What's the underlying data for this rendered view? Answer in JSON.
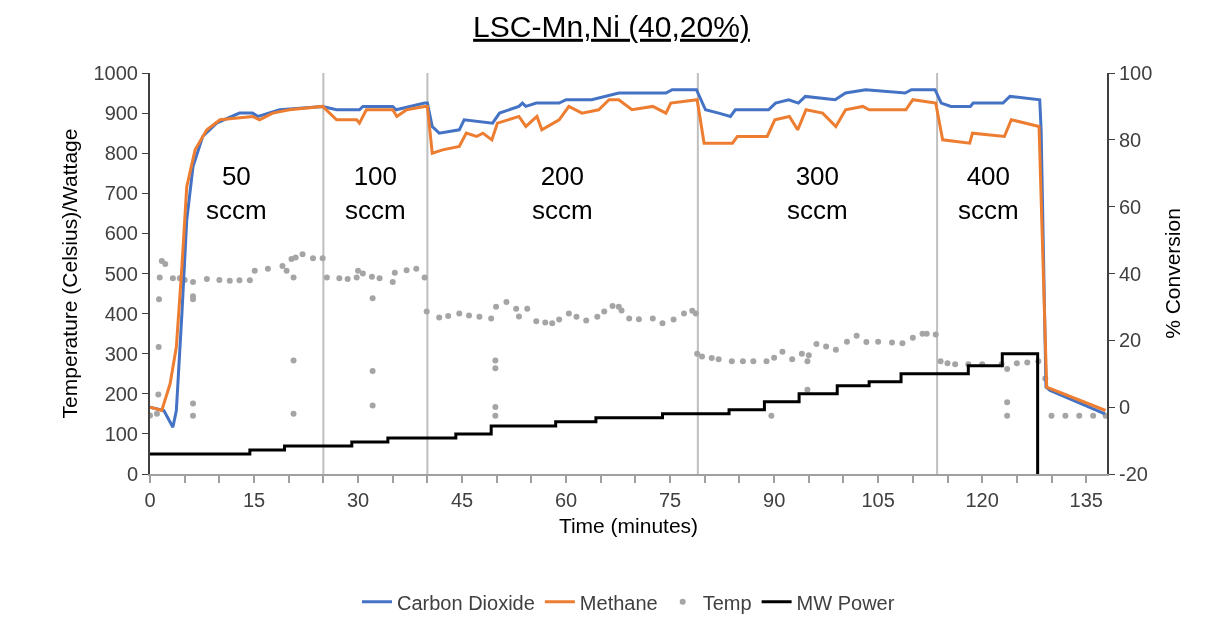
{
  "chart_data": {
    "type": "line",
    "title": "LSC-Mn,Ni (40,20%)",
    "xlabel": "Time (minutes)",
    "ylabel": "Temperature (Celsius)/Wattage",
    "y2label": "% Conversion",
    "xlim": [
      0,
      138
    ],
    "xticks": [
      0,
      {
        "value": 5,
        "label": null
      },
      {
        "value": 10,
        "label": null
      },
      15,
      {
        "value": 20,
        "label": null
      },
      {
        "value": 25,
        "label": null
      },
      30,
      {
        "value": 35,
        "label": null
      },
      {
        "value": 40,
        "label": null
      },
      45,
      {
        "value": 50,
        "label": null
      },
      {
        "value": 55,
        "label": null
      },
      60,
      {
        "value": 65,
        "label": null
      },
      {
        "value": 70,
        "label": null
      },
      75,
      {
        "value": 80,
        "label": null
      },
      {
        "value": 85,
        "label": null
      },
      90,
      {
        "value": 95,
        "label": null
      },
      {
        "value": 100,
        "label": null
      },
      105,
      {
        "value": 110,
        "label": null
      },
      {
        "value": 115,
        "label": null
      },
      120,
      {
        "value": 125,
        "label": null
      },
      {
        "value": 130,
        "label": null
      },
      135
    ],
    "ylim": [
      0,
      1000
    ],
    "yticks": [
      0,
      100,
      200,
      300,
      400,
      500,
      600,
      700,
      800,
      900,
      1000
    ],
    "y2lim": [
      -20,
      100
    ],
    "y2ticks": [
      -20,
      0,
      20,
      40,
      60,
      80,
      100
    ],
    "grid": false,
    "legend": "bottom",
    "ref_lines": [
      {
        "axis": "x",
        "value": 25,
        "color": "#bfbfbf"
      },
      {
        "axis": "x",
        "value": 40,
        "color": "#bfbfbf"
      },
      {
        "axis": "x",
        "value": 79,
        "color": "#bfbfbf"
      },
      {
        "axis": "x",
        "value": 113.5,
        "color": "#bfbfbf"
      }
    ],
    "annotations": [
      "50\nsccm",
      "100\nsccm",
      "200\nsccm",
      "300\nsccm",
      "400\nsccm"
    ],
    "series": [
      {
        "name": "Carbon Dioxide",
        "axis": "y2",
        "color": "#4472c4",
        "x": [
          0,
          2,
          3.3,
          3.8,
          4.6,
          5.3,
          6.2,
          7.6,
          9.6,
          12.9,
          14.8,
          15.6,
          18.7,
          24.9,
          26.9,
          30.2,
          30.7,
          35,
          35.5,
          39.6,
          40,
          40.7,
          41.7,
          44.6,
          45.3,
          49.4,
          50.4,
          53.2,
          53.7,
          54.2,
          55.7,
          59,
          60,
          63.7,
          67.6,
          74.4,
          75.3,
          78.8,
          80.1,
          82,
          83.7,
          84.4,
          89.2,
          90.2,
          92.1,
          93.5,
          94.5,
          98.8,
          100.3,
          103.2,
          108.9,
          109.8,
          113.2,
          114.1,
          115.5,
          118.3,
          118.7,
          123,
          124,
          128.3,
          128.5,
          129.2,
          129.8,
          137.7
        ],
        "values": [
          0,
          -1,
          -6,
          -1,
          28,
          56,
          72,
          81,
          85,
          88,
          88,
          87,
          89,
          90,
          89,
          89,
          90,
          90,
          89,
          91,
          91,
          84,
          82,
          83,
          86,
          85,
          88,
          90,
          91,
          90,
          91,
          91,
          92,
          92,
          94,
          94,
          95,
          95,
          89,
          88,
          87,
          89,
          89,
          91,
          92,
          91,
          93,
          92,
          94,
          95,
          94,
          95,
          95,
          91,
          90,
          90,
          91,
          91,
          93,
          92,
          83,
          6,
          5,
          -2
        ]
      },
      {
        "name": "Methane",
        "axis": "y2",
        "color": "#ed7d31",
        "x": [
          0,
          1.7,
          2.9,
          3.8,
          4.6,
          5.3,
          6.5,
          8.2,
          10.1,
          14.8,
          15.8,
          17.7,
          20.1,
          24.9,
          26.9,
          29.8,
          30.2,
          31.2,
          35,
          35.6,
          37,
          39.6,
          40,
          40.7,
          42.2,
          44.6,
          45.6,
          47.1,
          48,
          49.3,
          50.1,
          53.2,
          54.2,
          55.8,
          56.5,
          59,
          60.4,
          62.3,
          64.7,
          66.2,
          67.6,
          69.5,
          72.5,
          74.4,
          75.1,
          78.9,
          79.9,
          82,
          84,
          84.7,
          89,
          90.1,
          92.2,
          93.4,
          94.6,
          97,
          98.9,
          100.3,
          102.8,
          103.7,
          109,
          110,
          113.3,
          114.3,
          118.2,
          118.6,
          123.2,
          124.2,
          128.2,
          129.3,
          137.8
        ],
        "values": [
          0,
          -1,
          7,
          18,
          42,
          66,
          77,
          83,
          86,
          87,
          86,
          88,
          89,
          90,
          86,
          86,
          85,
          89,
          89,
          87,
          89,
          90,
          90,
          76,
          77,
          78,
          82,
          81,
          82,
          80,
          85,
          87,
          84,
          87,
          83,
          86,
          90,
          88,
          89,
          92,
          92,
          89,
          90,
          88,
          91,
          92,
          79,
          79,
          79,
          81,
          81,
          86,
          87,
          83,
          89,
          88,
          84,
          89,
          90,
          89,
          89,
          92,
          91,
          80,
          79,
          82,
          81,
          86,
          84,
          6,
          -1
        ]
      },
      {
        "name": "Temp",
        "type": "scatter",
        "marker": "circle",
        "color": "#a5a5a5",
        "x": [
          0,
          1,
          1.2,
          1.25,
          1.3,
          1.4,
          1.7,
          2.2,
          3.3,
          4.3,
          5,
          6.2,
          8.2,
          10,
          11.5,
          12.9,
          14.4,
          15.1,
          17,
          19.1,
          19.7,
          20.4,
          21,
          22,
          23.5,
          24.9,
          25.5,
          27.3,
          28.5,
          29.8,
          30,
          30.7,
          32,
          33.1,
          35,
          35.3,
          37,
          38.4,
          39.6,
          39.9,
          41.7,
          43,
          44.6,
          46,
          47.5,
          49.2,
          49.9,
          51.4,
          52.8,
          53.2,
          54.4,
          55.7,
          57,
          58,
          59,
          60.4,
          61.5,
          62.9,
          64.5,
          65.5,
          66.7,
          67.6,
          68,
          69.1,
          70.5,
          72.5,
          73.9,
          75.5,
          77,
          78.2,
          78.7,
          78.9,
          79.6,
          81,
          82,
          83.9,
          85.5,
          87,
          88.9,
          90,
          91.2,
          92.6,
          94,
          95,
          96.1,
          97.5,
          98.9,
          100.5,
          101.9,
          103.3,
          105,
          107,
          108.5,
          110,
          111.4,
          112,
          113.3,
          114,
          115,
          116.1,
          118,
          120,
          122.8,
          125,
          126.5,
          128.1,
          129.1,
          130,
          132,
          134,
          136,
          137.8,
          6.2,
          6.2,
          6.2,
          6.2,
          20.7,
          20.7,
          20.7,
          32.1,
          32.1,
          32.1,
          49.8,
          49.8,
          49.8,
          49.8,
          89.6,
          94.8,
          94.8,
          123.6,
          123.6,
          123.6
        ],
        "values": [
          146,
          150,
          198,
          317,
          436,
          490,
          531,
          524,
          488,
          488,
          484,
          479,
          486,
          484,
          482,
          483,
          483,
          507,
          512,
          519,
          507,
          536,
          540,
          548,
          538,
          538,
          490,
          488,
          486,
          490,
          507,
          500,
          492,
          488,
          479,
          502,
          508,
          512,
          490,
          405,
          390,
          394,
          400,
          395,
          392,
          388,
          417,
          429,
          412,
          393,
          412,
          381,
          378,
          376,
          385,
          400,
          392,
          383,
          392,
          405,
          419,
          417,
          408,
          388,
          386,
          388,
          376,
          385,
          400,
          407,
          400,
          300,
          293,
          289,
          286,
          281,
          281,
          281,
          281,
          290,
          305,
          286,
          300,
          296,
          324,
          318,
          310,
          330,
          345,
          329,
          330,
          328,
          326,
          340,
          350,
          350,
          348,
          281,
          276,
          274,
          274,
          274,
          274,
          276,
          278,
          281,
          238,
          145,
          145,
          145,
          145,
          145,
          443,
          436,
          176,
          145,
          490,
          283,
          150,
          438,
          257,
          171,
          283,
          264,
          167,
          145,
          145,
          281,
          210,
          262,
          179,
          145
        ]
      },
      {
        "name": "MW Power",
        "type": "step",
        "color": "#000000",
        "x": [
          0,
          14.4,
          19.4,
          29.1,
          34.3,
          44.1,
          49.2,
          58.5,
          64.3,
          73.9,
          83.5,
          88.6,
          93.6,
          99.1,
          103.7,
          108.3,
          118,
          122.9,
          128,
          128
        ],
        "values": [
          50,
          60,
          70,
          80,
          90,
          100,
          120,
          130,
          140,
          150,
          160,
          180,
          200,
          220,
          230,
          250,
          270,
          300,
          300,
          0
        ]
      }
    ]
  }
}
